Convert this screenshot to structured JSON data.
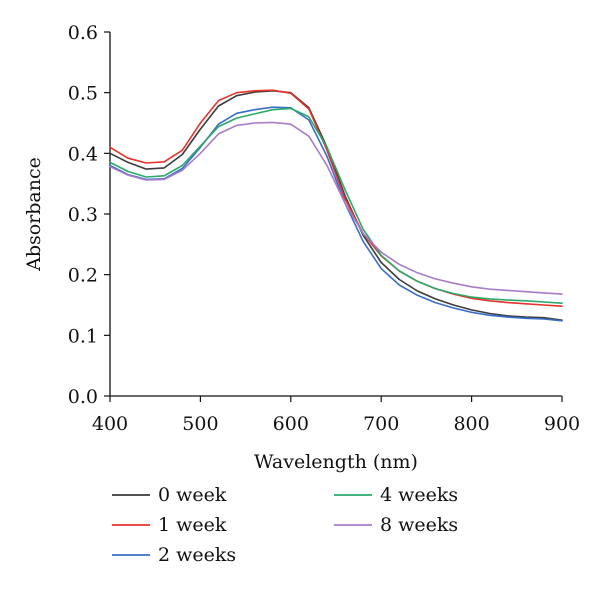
{
  "chart_data": {
    "type": "line",
    "xlabel": "Wavelength (nm)",
    "ylabel": "Absorbance",
    "xlim": [
      400,
      900
    ],
    "ylim": [
      0.0,
      0.6
    ],
    "xticks": [
      "400",
      "500",
      "600",
      "700",
      "800",
      "900"
    ],
    "yticks": [
      "0.0",
      "0.1",
      "0.2",
      "0.3",
      "0.4",
      "0.5",
      "0.6"
    ],
    "grid": false,
    "legend_position": "bottom",
    "x": [
      400,
      420,
      440,
      460,
      480,
      500,
      520,
      540,
      560,
      580,
      600,
      620,
      640,
      660,
      680,
      700,
      720,
      740,
      760,
      780,
      800,
      820,
      840,
      860,
      880,
      900
    ],
    "series": [
      {
        "name": "0 week",
        "color": "#3c3c3c",
        "values": [
          0.4,
          0.385,
          0.374,
          0.376,
          0.398,
          0.44,
          0.478,
          0.495,
          0.501,
          0.503,
          0.5,
          0.475,
          0.41,
          0.33,
          0.265,
          0.22,
          0.192,
          0.173,
          0.16,
          0.15,
          0.142,
          0.136,
          0.132,
          0.13,
          0.129,
          0.125
        ]
      },
      {
        "name": "1 week",
        "color": "#e8322b",
        "values": [
          0.41,
          0.392,
          0.384,
          0.386,
          0.405,
          0.45,
          0.487,
          0.5,
          0.503,
          0.504,
          0.499,
          0.473,
          0.405,
          0.325,
          0.268,
          0.231,
          0.206,
          0.189,
          0.177,
          0.168,
          0.161,
          0.157,
          0.154,
          0.152,
          0.15,
          0.148
        ]
      },
      {
        "name": "2 weeks",
        "color": "#3a6fc9",
        "values": [
          0.38,
          0.365,
          0.357,
          0.358,
          0.375,
          0.41,
          0.448,
          0.466,
          0.472,
          0.476,
          0.475,
          0.455,
          0.395,
          0.318,
          0.255,
          0.21,
          0.183,
          0.166,
          0.154,
          0.145,
          0.138,
          0.133,
          0.13,
          0.128,
          0.127,
          0.124
        ]
      },
      {
        "name": "4 weeks",
        "color": "#2ba86a",
        "values": [
          0.385,
          0.37,
          0.361,
          0.363,
          0.38,
          0.412,
          0.444,
          0.458,
          0.465,
          0.472,
          0.474,
          0.46,
          0.41,
          0.34,
          0.275,
          0.232,
          0.206,
          0.189,
          0.177,
          0.169,
          0.163,
          0.16,
          0.158,
          0.157,
          0.155,
          0.153
        ]
      },
      {
        "name": "8 weeks",
        "color": "#a87cc8",
        "values": [
          0.378,
          0.364,
          0.356,
          0.357,
          0.372,
          0.4,
          0.432,
          0.446,
          0.45,
          0.451,
          0.448,
          0.428,
          0.38,
          0.318,
          0.268,
          0.237,
          0.217,
          0.203,
          0.193,
          0.186,
          0.18,
          0.176,
          0.174,
          0.172,
          0.17,
          0.168
        ]
      }
    ]
  }
}
